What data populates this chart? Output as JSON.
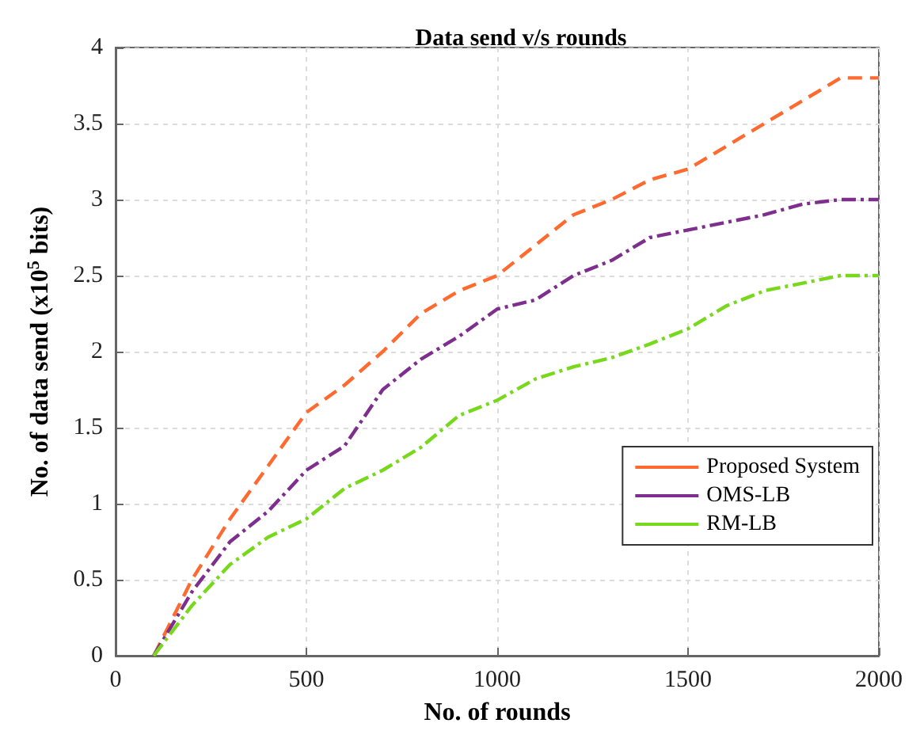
{
  "chart_data": {
    "type": "line",
    "title": "Data send v/s rounds",
    "xlabel": "No. of rounds",
    "ylabel": "No. of data send (x10$^{5}$ bits)",
    "x": [
      100,
      200,
      300,
      400,
      500,
      600,
      700,
      800,
      900,
      1000,
      1100,
      1200,
      1300,
      1400,
      1500,
      1600,
      1700,
      1800,
      1900,
      2000
    ],
    "series": [
      {
        "name": "Proposed System",
        "color": "#ff6a30",
        "line_style": "dashed",
        "values": [
          0,
          0.5,
          0.9,
          1.25,
          1.6,
          1.78,
          2.0,
          2.25,
          2.4,
          2.5,
          2.7,
          2.9,
          3.0,
          3.13,
          3.2,
          3.35,
          3.5,
          3.65,
          3.8,
          3.8
        ]
      },
      {
        "name": "OMS-LB",
        "color": "#7e2f8e",
        "line_style": "dashdot",
        "values": [
          0,
          0.42,
          0.75,
          0.95,
          1.22,
          1.38,
          1.75,
          1.95,
          2.1,
          2.28,
          2.34,
          2.5,
          2.6,
          2.75,
          2.8,
          2.85,
          2.9,
          2.97,
          3.0,
          3.0
        ]
      },
      {
        "name": "RM-LB",
        "color": "#77d81c",
        "line_style": "dashdot",
        "values": [
          0,
          0.33,
          0.6,
          0.78,
          0.9,
          1.1,
          1.22,
          1.37,
          1.58,
          1.68,
          1.82,
          1.9,
          1.96,
          2.05,
          2.15,
          2.3,
          2.4,
          2.45,
          2.5,
          2.5
        ]
      }
    ],
    "xlim": [
      0,
      2000
    ],
    "xticks": [
      0,
      500,
      1000,
      1500,
      2000
    ],
    "ylim": [
      0,
      4
    ],
    "yticks": [
      0,
      0.5,
      1,
      1.5,
      2,
      2.5,
      3,
      3.5,
      4
    ],
    "grid": true,
    "legend": "right",
    "marker": "none"
  }
}
